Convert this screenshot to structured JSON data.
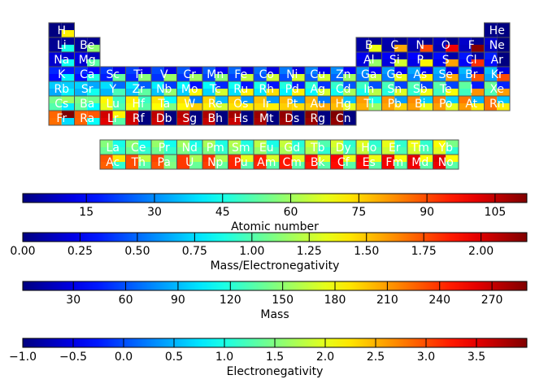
{
  "chart_data": {
    "type": "heatmap",
    "cell_quadrants": [
      "Atomic number",
      "Mass/Electronegativity",
      "Mass",
      "Electronegativity"
    ],
    "elements": [
      {
        "symbol": "H",
        "row": 1,
        "col": 1,
        "z": 1,
        "mass": 1.008,
        "en": 2.2,
        "me": 0.46
      },
      {
        "symbol": "He",
        "row": 1,
        "col": 18,
        "z": 2,
        "mass": 4.003,
        "en": -1,
        "me": 0
      },
      {
        "symbol": "Li",
        "row": 2,
        "col": 1,
        "z": 3,
        "mass": 6.94,
        "en": 0.98,
        "me": 7.08
      },
      {
        "symbol": "Be",
        "row": 2,
        "col": 2,
        "z": 4,
        "mass": 9.012,
        "en": 1.57,
        "me": 5.74
      },
      {
        "symbol": "B",
        "row": 2,
        "col": 13,
        "z": 5,
        "mass": 10.81,
        "en": 2.04,
        "me": 5.3
      },
      {
        "symbol": "C",
        "row": 2,
        "col": 14,
        "z": 6,
        "mass": 12.011,
        "en": 2.55,
        "me": 4.71
      },
      {
        "symbol": "N",
        "row": 2,
        "col": 15,
        "z": 7,
        "mass": 14.007,
        "en": 3.04,
        "me": 4.61
      },
      {
        "symbol": "O",
        "row": 2,
        "col": 16,
        "z": 8,
        "mass": 15.999,
        "en": 3.44,
        "me": 4.65
      },
      {
        "symbol": "F",
        "row": 2,
        "col": 17,
        "z": 9,
        "mass": 18.998,
        "en": 3.98,
        "me": 4.77
      },
      {
        "symbol": "Ne",
        "row": 2,
        "col": 18,
        "z": 10,
        "mass": 20.18,
        "en": -1,
        "me": 0
      },
      {
        "symbol": "Na",
        "row": 3,
        "col": 1,
        "z": 11,
        "mass": 22.99,
        "en": 0.93,
        "me": 24.72
      },
      {
        "symbol": "Mg",
        "row": 3,
        "col": 2,
        "z": 12,
        "mass": 24.305,
        "en": 1.31,
        "me": 18.55
      },
      {
        "symbol": "Al",
        "row": 3,
        "col": 13,
        "z": 13,
        "mass": 26.982,
        "en": 1.61,
        "me": 16.76
      },
      {
        "symbol": "Si",
        "row": 3,
        "col": 14,
        "z": 14,
        "mass": 28.085,
        "en": 1.9,
        "me": 14.78
      },
      {
        "symbol": "P",
        "row": 3,
        "col": 15,
        "z": 15,
        "mass": 30.974,
        "en": 2.19,
        "me": 14.14
      },
      {
        "symbol": "S",
        "row": 3,
        "col": 16,
        "z": 16,
        "mass": 32.06,
        "en": 2.58,
        "me": 12.43
      },
      {
        "symbol": "Cl",
        "row": 3,
        "col": 17,
        "z": 17,
        "mass": 35.45,
        "en": 3.16,
        "me": 11.22
      },
      {
        "symbol": "Ar",
        "row": 3,
        "col": 18,
        "z": 18,
        "mass": 39.948,
        "en": -1,
        "me": 0
      },
      {
        "symbol": "K",
        "row": 4,
        "col": 1,
        "z": 19,
        "mass": 39.098,
        "en": 0.82,
        "me": 47.68
      },
      {
        "symbol": "Ca",
        "row": 4,
        "col": 2,
        "z": 20,
        "mass": 40.078,
        "en": 1.0,
        "me": 40.08
      },
      {
        "symbol": "Sc",
        "row": 4,
        "col": 3,
        "z": 21,
        "mass": 44.956,
        "en": 1.36,
        "me": 33.06
      },
      {
        "symbol": "Ti",
        "row": 4,
        "col": 4,
        "z": 22,
        "mass": 47.867,
        "en": 1.54,
        "me": 31.08
      },
      {
        "symbol": "V",
        "row": 4,
        "col": 5,
        "z": 23,
        "mass": 50.942,
        "en": 1.63,
        "me": 31.25
      },
      {
        "symbol": "Cr",
        "row": 4,
        "col": 6,
        "z": 24,
        "mass": 51.996,
        "en": 1.66,
        "me": 31.32
      },
      {
        "symbol": "Mn",
        "row": 4,
        "col": 7,
        "z": 25,
        "mass": 54.938,
        "en": 1.55,
        "me": 35.44
      },
      {
        "symbol": "Fe",
        "row": 4,
        "col": 8,
        "z": 26,
        "mass": 55.845,
        "en": 1.83,
        "me": 30.52
      },
      {
        "symbol": "Co",
        "row": 4,
        "col": 9,
        "z": 27,
        "mass": 58.933,
        "en": 1.88,
        "me": 31.35
      },
      {
        "symbol": "Ni",
        "row": 4,
        "col": 10,
        "z": 28,
        "mass": 58.693,
        "en": 1.91,
        "me": 30.73
      },
      {
        "symbol": "Cu",
        "row": 4,
        "col": 11,
        "z": 29,
        "mass": 63.546,
        "en": 1.9,
        "me": 33.45
      },
      {
        "symbol": "Zn",
        "row": 4,
        "col": 12,
        "z": 30,
        "mass": 65.38,
        "en": 1.65,
        "me": 39.62
      },
      {
        "symbol": "Ga",
        "row": 4,
        "col": 13,
        "z": 31,
        "mass": 69.723,
        "en": 1.81,
        "me": 38.52
      },
      {
        "symbol": "Ge",
        "row": 4,
        "col": 14,
        "z": 32,
        "mass": 72.63,
        "en": 2.01,
        "me": 36.13
      },
      {
        "symbol": "As",
        "row": 4,
        "col": 15,
        "z": 33,
        "mass": 74.922,
        "en": 2.18,
        "me": 34.37
      },
      {
        "symbol": "Se",
        "row": 4,
        "col": 16,
        "z": 34,
        "mass": 78.971,
        "en": 2.55,
        "me": 30.97
      },
      {
        "symbol": "Br",
        "row": 4,
        "col": 17,
        "z": 35,
        "mass": 79.904,
        "en": 2.96,
        "me": 26.99
      },
      {
        "symbol": "Kr",
        "row": 4,
        "col": 18,
        "z": 36,
        "mass": 83.798,
        "en": 3.0,
        "me": 27.93
      },
      {
        "symbol": "Rb",
        "row": 5,
        "col": 1,
        "z": 37,
        "mass": 85.468,
        "en": 0.82,
        "me": 104.23
      },
      {
        "symbol": "Sr",
        "row": 5,
        "col": 2,
        "z": 38,
        "mass": 87.62,
        "en": 0.95,
        "me": 92.23
      },
      {
        "symbol": "Y",
        "row": 5,
        "col": 3,
        "z": 39,
        "mass": 88.906,
        "en": 1.22,
        "me": 72.87
      },
      {
        "symbol": "Zr",
        "row": 5,
        "col": 4,
        "z": 40,
        "mass": 91.224,
        "en": 1.33,
        "me": 68.59
      },
      {
        "symbol": "Nb",
        "row": 5,
        "col": 5,
        "z": 41,
        "mass": 92.906,
        "en": 1.6,
        "me": 58.07
      },
      {
        "symbol": "Mo",
        "row": 5,
        "col": 6,
        "z": 42,
        "mass": 95.95,
        "en": 2.16,
        "me": 44.42
      },
      {
        "symbol": "Tc",
        "row": 5,
        "col": 7,
        "z": 43,
        "mass": 98,
        "en": 1.9,
        "me": 51.58
      },
      {
        "symbol": "Ru",
        "row": 5,
        "col": 8,
        "z": 44,
        "mass": 101.07,
        "en": 2.2,
        "me": 45.94
      },
      {
        "symbol": "Rh",
        "row": 5,
        "col": 9,
        "z": 45,
        "mass": 102.906,
        "en": 2.28,
        "me": 45.13
      },
      {
        "symbol": "Pd",
        "row": 5,
        "col": 10,
        "z": 46,
        "mass": 106.42,
        "en": 2.2,
        "me": 48.37
      },
      {
        "symbol": "Ag",
        "row": 5,
        "col": 11,
        "z": 47,
        "mass": 107.868,
        "en": 1.93,
        "me": 55.89
      },
      {
        "symbol": "Cd",
        "row": 5,
        "col": 12,
        "z": 48,
        "mass": 112.414,
        "en": 1.69,
        "me": 66.52
      },
      {
        "symbol": "In",
        "row": 5,
        "col": 13,
        "z": 49,
        "mass": 114.818,
        "en": 1.78,
        "me": 64.5
      },
      {
        "symbol": "Sn",
        "row": 5,
        "col": 14,
        "z": 50,
        "mass": 118.71,
        "en": 1.96,
        "me": 60.57
      },
      {
        "symbol": "Sb",
        "row": 5,
        "col": 15,
        "z": 51,
        "mass": 121.76,
        "en": 2.05,
        "me": 59.4
      },
      {
        "symbol": "Te",
        "row": 5,
        "col": 16,
        "z": 52,
        "mass": 127.6,
        "en": 2.1,
        "me": 60.76
      },
      {
        "symbol": "I",
        "row": 5,
        "col": 17,
        "z": 53,
        "mass": 126.904,
        "en": 2.66,
        "me": 47.71
      },
      {
        "symbol": "Xe",
        "row": 5,
        "col": 18,
        "z": 54,
        "mass": 131.293,
        "en": 2.6,
        "me": 50.5
      },
      {
        "symbol": "Cs",
        "row": 6,
        "col": 1,
        "z": 55,
        "mass": 132.905,
        "en": 0.79,
        "me": 168.23
      },
      {
        "symbol": "Ba",
        "row": 6,
        "col": 2,
        "z": 56,
        "mass": 137.327,
        "en": 0.89,
        "me": 154.3
      },
      {
        "symbol": "Lu",
        "row": 6,
        "col": 3,
        "z": 71,
        "mass": 174.967,
        "en": 1.27,
        "me": 137.77
      },
      {
        "symbol": "Hf",
        "row": 6,
        "col": 4,
        "z": 72,
        "mass": 178.49,
        "en": 1.3,
        "me": 137.3
      },
      {
        "symbol": "Ta",
        "row": 6,
        "col": 5,
        "z": 73,
        "mass": 180.948,
        "en": 1.5,
        "me": 120.63
      },
      {
        "symbol": "W",
        "row": 6,
        "col": 6,
        "z": 74,
        "mass": 183.84,
        "en": 2.36,
        "me": 77.9
      },
      {
        "symbol": "Re",
        "row": 6,
        "col": 7,
        "z": 75,
        "mass": 186.207,
        "en": 1.9,
        "me": 98.0
      },
      {
        "symbol": "Os",
        "row": 6,
        "col": 8,
        "z": 76,
        "mass": 190.23,
        "en": 2.2,
        "me": 86.47
      },
      {
        "symbol": "Ir",
        "row": 6,
        "col": 9,
        "z": 77,
        "mass": 192.217,
        "en": 2.2,
        "me": 87.37
      },
      {
        "symbol": "Pt",
        "row": 6,
        "col": 10,
        "z": 78,
        "mass": 195.084,
        "en": 2.28,
        "me": 85.56
      },
      {
        "symbol": "Au",
        "row": 6,
        "col": 11,
        "z": 79,
        "mass": 196.967,
        "en": 2.54,
        "me": 77.55
      },
      {
        "symbol": "Hg",
        "row": 6,
        "col": 12,
        "z": 80,
        "mass": 200.592,
        "en": 2.0,
        "me": 100.3
      },
      {
        "symbol": "Tl",
        "row": 6,
        "col": 13,
        "z": 81,
        "mass": 204.38,
        "en": 1.62,
        "me": 126.16
      },
      {
        "symbol": "Pb",
        "row": 6,
        "col": 14,
        "z": 82,
        "mass": 207.2,
        "en": 2.33,
        "me": 88.93
      },
      {
        "symbol": "Bi",
        "row": 6,
        "col": 15,
        "z": 83,
        "mass": 208.98,
        "en": 2.02,
        "me": 103.46
      },
      {
        "symbol": "Po",
        "row": 6,
        "col": 16,
        "z": 84,
        "mass": 209,
        "en": 2.0,
        "me": 104.5
      },
      {
        "symbol": "At",
        "row": 6,
        "col": 17,
        "z": 85,
        "mass": 210,
        "en": 2.2,
        "me": 95.45
      },
      {
        "symbol": "Rn",
        "row": 6,
        "col": 18,
        "z": 86,
        "mass": 222,
        "en": 2.2,
        "me": 100.91
      },
      {
        "symbol": "Fr",
        "row": 7,
        "col": 1,
        "z": 87,
        "mass": 223,
        "en": 0.7,
        "me": 318.57
      },
      {
        "symbol": "Ra",
        "row": 7,
        "col": 2,
        "z": 88,
        "mass": 226,
        "en": 0.9,
        "me": 251.11
      },
      {
        "symbol": "Lr",
        "row": 7,
        "col": 3,
        "z": 103,
        "mass": 262,
        "en": 1.3,
        "me": 201.54
      },
      {
        "symbol": "Rf",
        "row": 7,
        "col": 4,
        "z": 104,
        "mass": 267,
        "en": -1,
        "me": 0
      },
      {
        "symbol": "Db",
        "row": 7,
        "col": 5,
        "z": 105,
        "mass": 268,
        "en": -1,
        "me": 0
      },
      {
        "symbol": "Sg",
        "row": 7,
        "col": 6,
        "z": 106,
        "mass": 269,
        "en": -1,
        "me": 0
      },
      {
        "symbol": "Bh",
        "row": 7,
        "col": 7,
        "z": 107,
        "mass": 270,
        "en": -1,
        "me": 0
      },
      {
        "symbol": "Hs",
        "row": 7,
        "col": 8,
        "z": 108,
        "mass": 269,
        "en": -1,
        "me": 0
      },
      {
        "symbol": "Mt",
        "row": 7,
        "col": 9,
        "z": 109,
        "mass": 278,
        "en": -1,
        "me": 0
      },
      {
        "symbol": "Ds",
        "row": 7,
        "col": 10,
        "z": 110,
        "mass": 281,
        "en": -1,
        "me": 0
      },
      {
        "symbol": "Rg",
        "row": 7,
        "col": 11,
        "z": 111,
        "mass": 282,
        "en": -1,
        "me": 0
      },
      {
        "symbol": "Cn",
        "row": 7,
        "col": 12,
        "z": 112,
        "mass": 285,
        "en": -1,
        "me": 0
      },
      {
        "symbol": "La",
        "row": 9,
        "col": 3,
        "z": 57,
        "mass": 138.905,
        "en": 1.1,
        "me": 126.28
      },
      {
        "symbol": "Ce",
        "row": 9,
        "col": 4,
        "z": 58,
        "mass": 140.116,
        "en": 1.12,
        "me": 125.1
      },
      {
        "symbol": "Pr",
        "row": 9,
        "col": 5,
        "z": 59,
        "mass": 140.908,
        "en": 1.13,
        "me": 124.7
      },
      {
        "symbol": "Nd",
        "row": 9,
        "col": 6,
        "z": 60,
        "mass": 144.242,
        "en": 1.14,
        "me": 126.53
      },
      {
        "symbol": "Pm",
        "row": 9,
        "col": 7,
        "z": 61,
        "mass": 145,
        "en": 1.13,
        "me": 128.32
      },
      {
        "symbol": "Sm",
        "row": 9,
        "col": 8,
        "z": 62,
        "mass": 150.36,
        "en": 1.17,
        "me": 128.51
      },
      {
        "symbol": "Eu",
        "row": 9,
        "col": 9,
        "z": 63,
        "mass": 151.964,
        "en": 1.2,
        "me": 126.64
      },
      {
        "symbol": "Gd",
        "row": 9,
        "col": 10,
        "z": 64,
        "mass": 157.25,
        "en": 1.2,
        "me": 131.04
      },
      {
        "symbol": "Tb",
        "row": 9,
        "col": 11,
        "z": 65,
        "mass": 158.925,
        "en": 1.1,
        "me": 144.48
      },
      {
        "symbol": "Dy",
        "row": 9,
        "col": 12,
        "z": 66,
        "mass": 162.5,
        "en": 1.22,
        "me": 133.2
      },
      {
        "symbol": "Ho",
        "row": 9,
        "col": 13,
        "z": 67,
        "mass": 164.93,
        "en": 1.23,
        "me": 134.09
      },
      {
        "symbol": "Er",
        "row": 9,
        "col": 14,
        "z": 68,
        "mass": 167.259,
        "en": 1.24,
        "me": 134.89
      },
      {
        "symbol": "Tm",
        "row": 9,
        "col": 15,
        "z": 69,
        "mass": 168.934,
        "en": 1.25,
        "me": 135.15
      },
      {
        "symbol": "Yb",
        "row": 9,
        "col": 16,
        "z": 70,
        "mass": 173.045,
        "en": 1.1,
        "me": 157.31
      },
      {
        "symbol": "Ac",
        "row": 10,
        "col": 3,
        "z": 89,
        "mass": 227,
        "en": 1.1,
        "me": 206.36
      },
      {
        "symbol": "Th",
        "row": 10,
        "col": 4,
        "z": 90,
        "mass": 232.038,
        "en": 1.3,
        "me": 178.49
      },
      {
        "symbol": "Pa",
        "row": 10,
        "col": 5,
        "z": 91,
        "mass": 231.036,
        "en": 1.5,
        "me": 154.02
      },
      {
        "symbol": "U",
        "row": 10,
        "col": 6,
        "z": 92,
        "mass": 238.029,
        "en": 1.38,
        "me": 172.48
      },
      {
        "symbol": "Np",
        "row": 10,
        "col": 7,
        "z": 93,
        "mass": 237,
        "en": 1.36,
        "me": 174.26
      },
      {
        "symbol": "Pu",
        "row": 10,
        "col": 8,
        "z": 94,
        "mass": 244,
        "en": 1.28,
        "me": 190.63
      },
      {
        "symbol": "Am",
        "row": 10,
        "col": 9,
        "z": 95,
        "mass": 243,
        "en": 1.3,
        "me": 186.92
      },
      {
        "symbol": "Cm",
        "row": 10,
        "col": 10,
        "z": 96,
        "mass": 247,
        "en": 1.3,
        "me": 190.0
      },
      {
        "symbol": "Bk",
        "row": 10,
        "col": 11,
        "z": 97,
        "mass": 247,
        "en": 1.3,
        "me": 190.0
      },
      {
        "symbol": "Cf",
        "row": 10,
        "col": 12,
        "z": 98,
        "mass": 251,
        "en": 1.3,
        "me": 193.08
      },
      {
        "symbol": "Es",
        "row": 10,
        "col": 13,
        "z": 99,
        "mass": 252,
        "en": 1.3,
        "me": 193.85
      },
      {
        "symbol": "Fm",
        "row": 10,
        "col": 14,
        "z": 100,
        "mass": 257,
        "en": 1.3,
        "me": 197.69
      },
      {
        "symbol": "Md",
        "row": 10,
        "col": 15,
        "z": 101,
        "mass": 258,
        "en": 1.3,
        "me": 198.46
      },
      {
        "symbol": "No",
        "row": 10,
        "col": 16,
        "z": 102,
        "mass": 259,
        "en": 1.3,
        "me": 199.23
      }
    ],
    "colorbars": [
      {
        "key": "z",
        "label": "Atomic number",
        "min": 1,
        "max": 112,
        "ticks": [
          15,
          30,
          45,
          60,
          75,
          90,
          105
        ],
        "tick_labels": [
          "15",
          "30",
          "45",
          "60",
          "75",
          "90",
          "105"
        ]
      },
      {
        "key": "me",
        "label": "Mass/Electronegativity",
        "min": 0,
        "max": 2.2,
        "ticks": [
          0,
          0.25,
          0.5,
          0.75,
          1.0,
          1.25,
          1.5,
          1.75,
          2.0
        ],
        "tick_labels": [
          "0.00",
          "0.25",
          "0.50",
          "0.75",
          "1.00",
          "1.25",
          "1.50",
          "1.75",
          "2.00"
        ]
      },
      {
        "key": "mass",
        "label": "Mass",
        "min": 1,
        "max": 290,
        "ticks": [
          30,
          60,
          90,
          120,
          150,
          180,
          210,
          240,
          270
        ],
        "tick_labels": [
          "30",
          "60",
          "90",
          "120",
          "150",
          "180",
          "210",
          "240",
          "270"
        ]
      },
      {
        "key": "en",
        "label": "Electronegativity",
        "min": -1,
        "max": 4,
        "ticks": [
          -1,
          -0.5,
          0,
          0.5,
          1.0,
          1.5,
          2.0,
          2.5,
          3.0,
          3.5
        ],
        "tick_labels": [
          "−1.0",
          "−0.5",
          "0.0",
          "0.5",
          "1.0",
          "1.5",
          "2.0",
          "2.5",
          "3.0",
          "3.5"
        ]
      }
    ],
    "colormap": "jet"
  }
}
